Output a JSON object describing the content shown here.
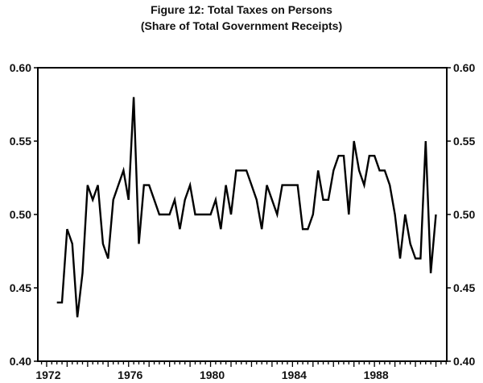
{
  "chart_data": {
    "type": "line",
    "title": "Figure 12: Total Taxes on Persons",
    "subtitle": "(Share of Total Government Receipts)",
    "xlabel": "",
    "ylabel": "",
    "frequency": "quarterly",
    "start": 1972.5,
    "step": 0.25,
    "values": [
      0.44,
      0.44,
      0.49,
      0.48,
      0.43,
      0.46,
      0.52,
      0.51,
      0.52,
      0.48,
      0.47,
      0.51,
      0.52,
      0.53,
      0.51,
      0.58,
      0.48,
      0.52,
      0.52,
      0.51,
      0.5,
      0.5,
      0.5,
      0.51,
      0.49,
      0.51,
      0.52,
      0.5,
      0.5,
      0.5,
      0.5,
      0.51,
      0.49,
      0.52,
      0.5,
      0.53,
      0.53,
      0.53,
      0.52,
      0.51,
      0.49,
      0.52,
      0.51,
      0.5,
      0.52,
      0.52,
      0.52,
      0.52,
      0.49,
      0.49,
      0.5,
      0.53,
      0.51,
      0.51,
      0.53,
      0.54,
      0.54,
      0.5,
      0.55,
      0.53,
      0.52,
      0.54,
      0.54,
      0.53,
      0.53,
      0.52,
      0.5,
      0.47,
      0.5,
      0.48,
      0.47,
      0.47,
      0.55,
      0.46,
      0.5
    ],
    "xlim": [
      1971.57,
      1991.53
    ],
    "ylim": [
      0.4,
      0.6
    ],
    "x_tick_labels": [
      "1972",
      "1976",
      "1980",
      "1984",
      "1988"
    ],
    "x_tick_values": [
      1972,
      1976,
      1980,
      1984,
      1988
    ],
    "y_tick_labels_left": [
      "0.40",
      "0.45",
      "0.50",
      "0.55",
      "0.60"
    ],
    "y_tick_labels_right": [
      "0.40",
      "0.45",
      "0.50",
      "0.55",
      "0.60"
    ],
    "y_tick_values": [
      0.4,
      0.45,
      0.5,
      0.55,
      0.6
    ],
    "grid": false,
    "legend": "none",
    "line_color": "#000000"
  }
}
